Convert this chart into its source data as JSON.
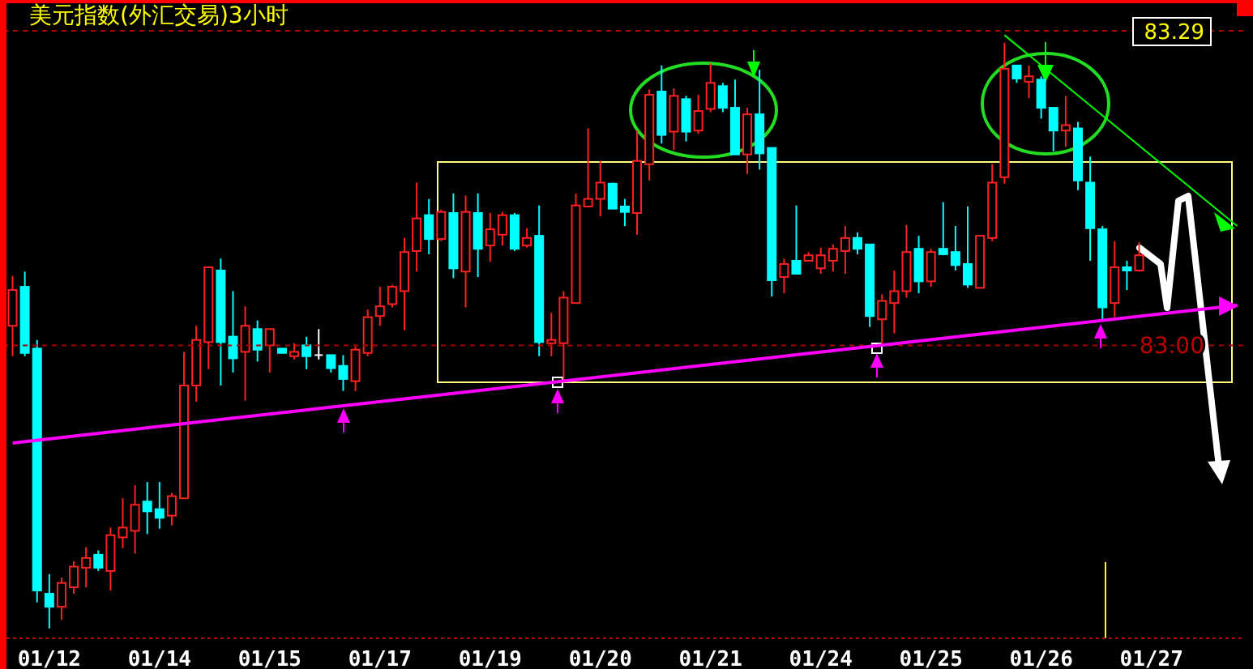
{
  "chart_data": {
    "type": "candlestick",
    "title": "美元指数(外汇交易)3小时",
    "categories": [
      null,
      null,
      null,
      "01/12",
      null,
      null,
      null,
      null,
      null,
      null,
      null,
      null,
      "01/14",
      null,
      null,
      null,
      null,
      null,
      null,
      null,
      null,
      "01/15",
      null,
      null,
      null,
      null,
      null,
      null,
      null,
      null,
      "01/17",
      null,
      null,
      null,
      null,
      null,
      null,
      null,
      null,
      "01/19",
      null,
      null,
      null,
      null,
      null,
      null,
      null,
      null,
      "01/20",
      null,
      null,
      null,
      null,
      null,
      null,
      null,
      null,
      "01/21",
      null,
      null,
      null,
      null,
      null,
      null,
      null,
      null,
      "01/24",
      null,
      null,
      null,
      null,
      null,
      null,
      null,
      null,
      "01/25",
      null,
      null,
      null,
      null,
      null,
      null,
      null,
      null,
      "01/26",
      null,
      null,
      null,
      null,
      null,
      null,
      null,
      null,
      "01/27",
      null,
      null,
      null,
      null,
      null,
      null,
      null
    ],
    "ohlc": [
      [
        83.018,
        83.064,
        82.99,
        83.051
      ],
      [
        83.054,
        83.068,
        82.99,
        82.993
      ],
      [
        82.997,
        83.005,
        82.763,
        82.774
      ],
      [
        82.771,
        82.789,
        82.739,
        82.759
      ],
      [
        82.759,
        82.786,
        82.747,
        82.781
      ],
      [
        82.777,
        82.801,
        82.771,
        82.796
      ],
      [
        82.795,
        82.814,
        82.777,
        82.804
      ],
      [
        82.807,
        82.811,
        82.792,
        82.795
      ],
      [
        82.792,
        82.832,
        82.774,
        82.825
      ],
      [
        82.823,
        82.859,
        82.813,
        82.832
      ],
      [
        82.829,
        82.871,
        82.808,
        82.853
      ],
      [
        82.856,
        82.874,
        82.826,
        82.847
      ],
      [
        82.849,
        82.874,
        82.831,
        82.841
      ],
      [
        82.843,
        82.864,
        82.834,
        82.861
      ],
      [
        82.859,
        82.994,
        82.859,
        82.963
      ],
      [
        82.963,
        83.018,
        82.948,
        83.005
      ],
      [
        83.003,
        83.072,
        82.978,
        83.072
      ],
      [
        83.069,
        83.08,
        82.963,
        83.003
      ],
      [
        83.008,
        83.05,
        82.975,
        82.988
      ],
      [
        82.994,
        83.036,
        82.949,
        83.018
      ],
      [
        83.015,
        83.023,
        82.985,
        82.996
      ],
      [
        83.0,
        83.015,
        82.975,
        83.015
      ],
      [
        82.997,
        82.997,
        82.993,
        82.993
      ],
      [
        82.99,
        83.002,
        82.987,
        82.994
      ],
      [
        83.0,
        83.008,
        82.978,
        82.99
      ],
      [
        82.991,
        83.015,
        82.987,
        82.991
      ],
      [
        82.991,
        82.991,
        82.975,
        82.979
      ],
      [
        82.981,
        82.991,
        82.958,
        82.969
      ],
      [
        82.967,
        82.999,
        82.958,
        82.996
      ],
      [
        82.993,
        83.033,
        82.99,
        83.026
      ],
      [
        83.027,
        83.054,
        83.018,
        83.036
      ],
      [
        83.038,
        83.056,
        83.035,
        83.054
      ],
      [
        83.05,
        83.099,
        83.014,
        83.086
      ],
      [
        83.087,
        83.15,
        83.068,
        83.117
      ],
      [
        83.12,
        83.135,
        83.084,
        83.098
      ],
      [
        83.098,
        83.125,
        83.096,
        83.123
      ],
      [
        83.122,
        83.14,
        83.062,
        83.071
      ],
      [
        83.068,
        83.138,
        83.035,
        83.123
      ],
      [
        83.122,
        83.14,
        83.063,
        83.089
      ],
      [
        83.092,
        83.122,
        83.077,
        83.107
      ],
      [
        83.102,
        83.123,
        83.092,
        83.12
      ],
      [
        83.12,
        83.122,
        83.087,
        83.089
      ],
      [
        83.092,
        83.108,
        83.09,
        83.099
      ],
      [
        83.101,
        83.129,
        82.99,
        83.003
      ],
      [
        83.002,
        83.03,
        82.99,
        83.005
      ],
      [
        83.002,
        83.05,
        82.967,
        83.044
      ],
      [
        83.039,
        83.14,
        83.039,
        83.129
      ],
      [
        83.128,
        83.2,
        83.128,
        83.135
      ],
      [
        83.135,
        83.17,
        83.119,
        83.15
      ],
      [
        83.149,
        83.15,
        83.126,
        83.126
      ],
      [
        83.128,
        83.135,
        83.11,
        83.123
      ],
      [
        83.122,
        83.198,
        83.102,
        83.17
      ],
      [
        83.167,
        83.236,
        83.152,
        83.231
      ],
      [
        83.234,
        83.258,
        83.186,
        83.194
      ],
      [
        83.197,
        83.237,
        83.18,
        83.23
      ],
      [
        83.227,
        83.23,
        83.188,
        83.197
      ],
      [
        83.198,
        83.231,
        83.195,
        83.216
      ],
      [
        83.218,
        83.26,
        83.215,
        83.242
      ],
      [
        83.239,
        83.242,
        83.215,
        83.219
      ],
      [
        83.219,
        83.245,
        83.176,
        83.176
      ],
      [
        83.176,
        83.219,
        83.158,
        83.213
      ],
      [
        83.213,
        83.254,
        83.162,
        83.177
      ],
      [
        83.182,
        83.182,
        83.045,
        83.06
      ],
      [
        83.063,
        83.08,
        83.048,
        83.075
      ],
      [
        83.078,
        83.129,
        83.066,
        83.066
      ],
      [
        83.078,
        83.086,
        83.078,
        83.083
      ],
      [
        83.071,
        83.09,
        83.066,
        83.083
      ],
      [
        83.078,
        83.093,
        83.068,
        83.089
      ],
      [
        83.087,
        83.11,
        83.066,
        83.099
      ],
      [
        83.099,
        83.104,
        83.084,
        83.089
      ],
      [
        83.093,
        83.093,
        83.017,
        83.027
      ],
      [
        83.024,
        83.047,
        83.0,
        83.041
      ],
      [
        83.039,
        83.069,
        83.011,
        83.05
      ],
      [
        83.05,
        83.111,
        83.044,
        83.086
      ],
      [
        83.089,
        83.101,
        83.048,
        83.059
      ],
      [
        83.059,
        83.089,
        83.054,
        83.086
      ],
      [
        83.089,
        83.132,
        83.083,
        83.084
      ],
      [
        83.086,
        83.11,
        83.069,
        83.074
      ],
      [
        83.075,
        83.128,
        83.053,
        83.056
      ],
      [
        83.053,
        83.101,
        83.053,
        83.101
      ],
      [
        83.099,
        83.167,
        83.096,
        83.15
      ],
      [
        83.155,
        83.279,
        83.149,
        83.255
      ],
      [
        83.258,
        83.258,
        83.242,
        83.246
      ],
      [
        83.243,
        83.258,
        83.228,
        83.248
      ],
      [
        83.245,
        83.248,
        83.209,
        83.219
      ],
      [
        83.219,
        83.219,
        83.179,
        83.198
      ],
      [
        83.198,
        83.23,
        83.183,
        83.203
      ],
      [
        83.2,
        83.206,
        83.143,
        83.152
      ],
      [
        83.15,
        83.174,
        83.078,
        83.108
      ],
      [
        83.107,
        83.11,
        83.023,
        83.035
      ],
      [
        83.039,
        83.096,
        83.026,
        83.072
      ],
      [
        83.072,
        83.078,
        83.051,
        83.069
      ],
      [
        83.069,
        83.095,
        83.068,
        83.083
      ],
      null,
      null,
      null,
      null,
      null,
      null,
      null,
      null
    ],
    "series": [
      {
        "type": "line",
        "color": "#ff00ff",
        "values": [
          82.91,
          null,
          null,
          null,
          null,
          null,
          null,
          null,
          null,
          null,
          null,
          null,
          null,
          null,
          null,
          null,
          null,
          null,
          null,
          null,
          null,
          null,
          null,
          null,
          null,
          null,
          null,
          null,
          null,
          null,
          null,
          null,
          null,
          null,
          null,
          null,
          null,
          null,
          null,
          null,
          null,
          null,
          null,
          null,
          null,
          null,
          null,
          null,
          null,
          null,
          null,
          null,
          null,
          null,
          null,
          null,
          null,
          null,
          null,
          null,
          null,
          null,
          null,
          null,
          null,
          null,
          null,
          null,
          null,
          null,
          null,
          null,
          null,
          null,
          null,
          null,
          null,
          null,
          null,
          null,
          null,
          null,
          null,
          null,
          null,
          null,
          null,
          null,
          null,
          null,
          null,
          null,
          null,
          null,
          null,
          null,
          null,
          null,
          null,
          null,
          83.037
        ]
      },
      {
        "type": "line",
        "color": "#00ff00",
        "values": [
          null,
          null,
          null,
          null,
          null,
          null,
          null,
          null,
          null,
          null,
          null,
          null,
          null,
          null,
          null,
          null,
          null,
          null,
          null,
          null,
          null,
          null,
          null,
          null,
          null,
          null,
          null,
          null,
          null,
          null,
          null,
          null,
          null,
          null,
          null,
          null,
          null,
          null,
          null,
          null,
          null,
          null,
          null,
          null,
          null,
          null,
          null,
          null,
          null,
          null,
          null,
          null,
          null,
          null,
          null,
          null,
          null,
          null,
          null,
          null,
          null,
          null,
          null,
          null,
          null,
          null,
          null,
          null,
          null,
          null,
          null,
          null,
          null,
          null,
          null,
          null,
          null,
          null,
          null,
          null,
          null,
          83.286,
          null,
          null,
          null,
          null,
          null,
          null,
          null,
          null,
          null,
          null,
          null,
          null,
          null,
          null,
          null,
          null,
          null,
          null,
          83.11
        ]
      }
    ],
    "ylim": [
      82.73,
      83.29
    ],
    "yticks": [
      {
        "value": 83,
        "label": "83.00"
      },
      83.29
    ],
    "ref_lines": [
      {
        "axis": "y",
        "value": 83,
        "color": "#b00000",
        "line_style": "dashed"
      },
      {
        "axis": "y",
        "value": 83.29,
        "color": "#b00000",
        "line_style": "dashed"
      }
    ]
  }
}
